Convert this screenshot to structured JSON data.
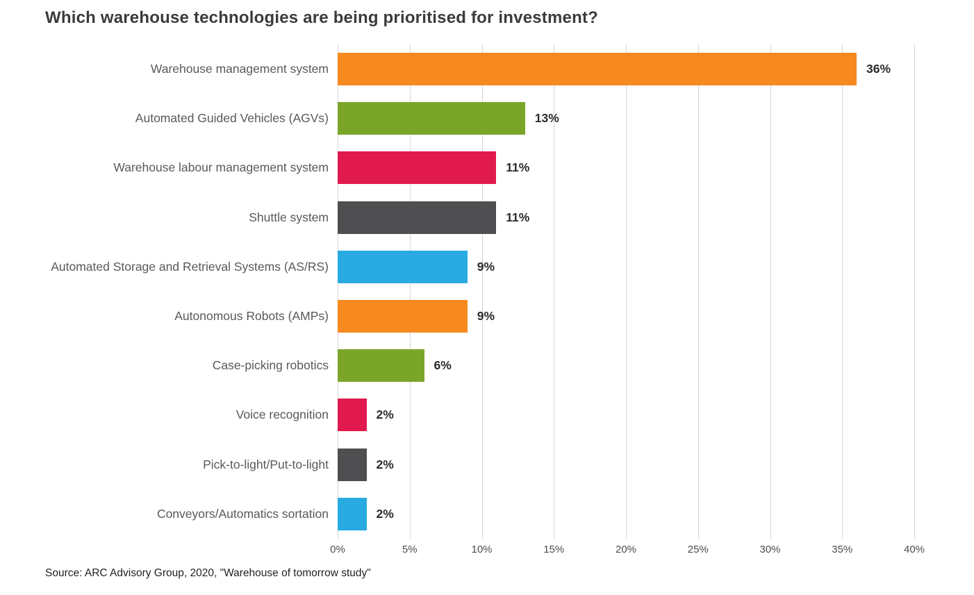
{
  "chart_data": {
    "type": "bar",
    "orientation": "horizontal",
    "title": "Which warehouse technologies are being prioritised for investment?",
    "source": "Source: ARC Advisory Group, 2020, \"Warehouse of tomorrow study\"",
    "categories": [
      "Warehouse management system",
      "Automated Guided Vehicles (AGVs)",
      "Warehouse labour management system",
      "Shuttle system",
      "Automated Storage and Retrieval Systems (AS/RS)",
      "Autonomous Robots (AMPs)",
      "Case-picking robotics",
      "Voice recognition",
      "Pick-to-light/Put-to-light",
      "Conveyors/Automatics sortation"
    ],
    "values": [
      36,
      13,
      11,
      11,
      9,
      9,
      6,
      2,
      2,
      2
    ],
    "value_labels": [
      "36%",
      "13%",
      "11%",
      "11%",
      "9%",
      "9%",
      "6%",
      "2%",
      "2%",
      "2%"
    ],
    "bar_colors": [
      "#F6891F",
      "#7BA529",
      "#E01A4F",
      "#4F4F51",
      "#29ABE2",
      "#F6891F",
      "#7BA529",
      "#E01A4F",
      "#4F4F51",
      "#29ABE2"
    ],
    "x_ticks": [
      "0%",
      "5%",
      "10%",
      "15%",
      "20%",
      "25%",
      "30%",
      "35%",
      "40%"
    ],
    "xlim": [
      0,
      40
    ],
    "xlabel": "",
    "ylabel": "",
    "grid": true,
    "legend": "none",
    "colors": {
      "grid": "#d6d6d6",
      "title_text": "#3b3b3d",
      "category_text": "#58595b",
      "value_text": "#2b2b2d",
      "tick_text": "#4c4c4e",
      "background": "#ffffff"
    }
  }
}
